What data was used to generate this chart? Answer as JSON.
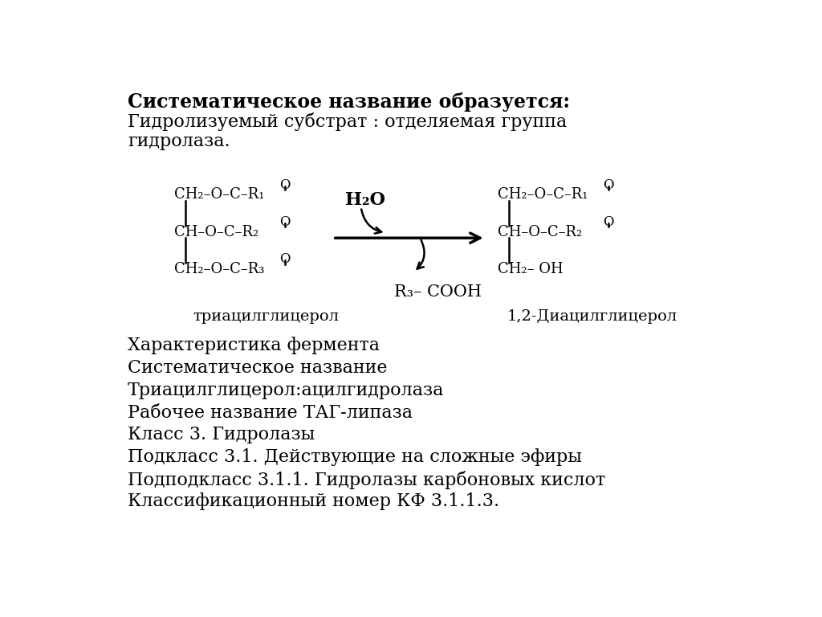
{
  "background_color": "#ffffff",
  "title_bold": "Систематическое название образуется:",
  "line2": "Гидролизуемый субстрат : отделяемая группа",
  "line3": "гидролаза.",
  "label_left": "триацилглицерол",
  "label_right": "1,2-Диацилглицерол",
  "h2o_label": "H₂O",
  "r3_label": "R₃– COOH",
  "char_lines": [
    "Характеристика фермента",
    "Систематическое название",
    "Триацилглицерол:ацилгидролаза",
    "Рабочее название ТАГ-липаза",
    "Класс 3. Гидролазы",
    "Подкласс 3.1. Действующие на сложные эфиры",
    "Подподкласс 3.1.1. Гидролазы карбоновых кислот",
    "Классификационный номер КФ 3.1.1.3."
  ],
  "font_size_title": 17,
  "font_size_body": 16,
  "font_size_chem": 13,
  "font_size_label": 14,
  "text_color": "#000000"
}
